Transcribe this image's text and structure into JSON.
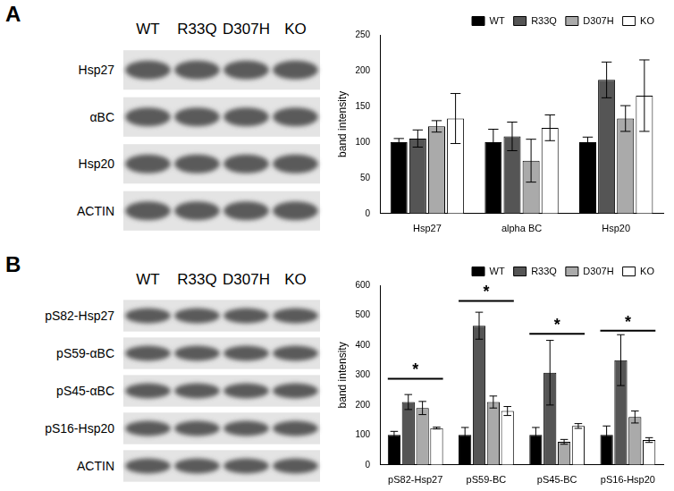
{
  "panels": [
    {
      "label": "A",
      "lanes": [
        "WT",
        "R33Q",
        "D307H",
        "KO"
      ],
      "rows": [
        "Hsp27",
        "αBC",
        "Hsp20",
        "ACTIN"
      ]
    },
    {
      "label": "B",
      "lanes": [
        "WT",
        "R33Q",
        "D307H",
        "KO"
      ],
      "rows": [
        "pS82-Hsp27",
        "pS59-αBC",
        "pS45-αBC",
        "pS16-Hsp20",
        "ACTIN"
      ]
    }
  ],
  "chart_data": [
    {
      "type": "bar",
      "y_label": "band intensity",
      "categories": [
        "Hsp27",
        "alpha BC",
        "Hsp20"
      ],
      "series": [
        {
          "name": "WT",
          "color": "#000000",
          "values": [
            100,
            100,
            100
          ],
          "errors": [
            5,
            18,
            7
          ]
        },
        {
          "name": "R33Q",
          "color": "#555555",
          "values": [
            105,
            108,
            187
          ],
          "errors": [
            12,
            20,
            25
          ]
        },
        {
          "name": "D307H",
          "color": "#aaaaaa",
          "values": [
            122,
            74,
            133
          ],
          "errors": [
            8,
            30,
            18
          ]
        },
        {
          "name": "KO",
          "color": "#ffffff",
          "values": [
            133,
            120,
            165
          ],
          "errors": [
            35,
            18,
            50
          ]
        }
      ],
      "ylim": [
        0,
        250
      ],
      "yticks": [
        0,
        50,
        100,
        150,
        200,
        250
      ],
      "grid": false,
      "legend": "upper right"
    },
    {
      "type": "bar",
      "y_label": "band intensity",
      "categories": [
        "pS82-Hsp27",
        "pS59-BC",
        "pS45-BC",
        "pS16-Hsp20"
      ],
      "series": [
        {
          "name": "WT",
          "color": "#000000",
          "values": [
            100,
            100,
            100,
            100
          ],
          "errors": [
            12,
            25,
            25,
            30
          ]
        },
        {
          "name": "R33Q",
          "color": "#555555",
          "values": [
            210,
            465,
            308,
            350
          ],
          "errors": [
            25,
            45,
            108,
            85
          ]
        },
        {
          "name": "D307H",
          "color": "#aaaaaa",
          "values": [
            190,
            210,
            77,
            160
          ],
          "errors": [
            22,
            20,
            8,
            20
          ]
        },
        {
          "name": "KO",
          "color": "#ffffff",
          "values": [
            123,
            180,
            130,
            83
          ],
          "errors": [
            3,
            15,
            8,
            8
          ]
        }
      ],
      "significance": [
        {
          "category": "pS82-Hsp27",
          "label": "*",
          "y": 300
        },
        {
          "category": "pS59-BC",
          "label": "*",
          "y": 560
        },
        {
          "category": "pS45-BC",
          "label": "*",
          "y": 450
        },
        {
          "category": "pS16-Hsp20",
          "label": "*",
          "y": 460
        }
      ],
      "ylim": [
        0,
        600
      ],
      "yticks": [
        0,
        100,
        200,
        300,
        400,
        500,
        600
      ],
      "grid": false,
      "legend": "upper right"
    }
  ]
}
